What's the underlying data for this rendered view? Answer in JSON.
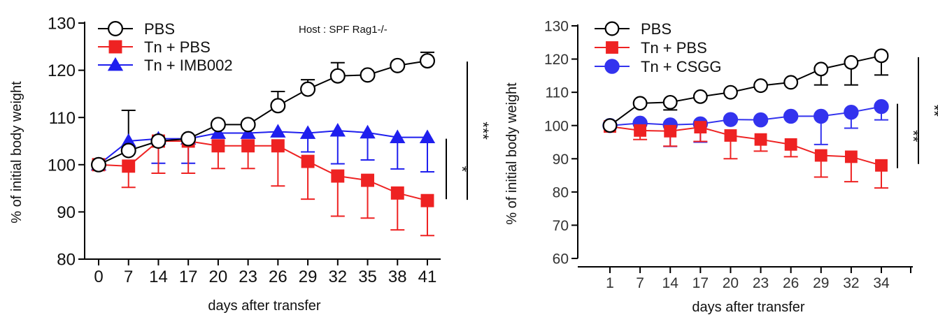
{
  "colors": {
    "pbs": "#000000",
    "tn_pbs": "#ee2222",
    "tn_treat_left": "#1f1fee",
    "tn_treat_right": "#3333ee"
  },
  "chart_data": [
    {
      "type": "line",
      "xlabel": "days after transfer",
      "ylabel": "% of initial body weight",
      "annotation": "Host : SPF Rag1-/-",
      "ylim": [
        80,
        130
      ],
      "yticks": [
        80,
        90,
        100,
        110,
        120,
        130
      ],
      "categories": [
        "0",
        "7",
        "14",
        "17",
        "20",
        "23",
        "26",
        "29",
        "32",
        "35",
        "38",
        "41"
      ],
      "series": [
        {
          "name": "PBS",
          "marker": "open-circle",
          "color": "#000000",
          "values": [
            100,
            103,
            105,
            105.5,
            108.5,
            108.5,
            112.5,
            116,
            118.8,
            119,
            121,
            122
          ],
          "error": [
            0,
            8.5,
            0,
            0,
            0,
            0,
            3,
            2,
            2.8,
            0,
            0,
            1.8
          ]
        },
        {
          "name": "Tn + PBS",
          "marker": "square",
          "color": "#ee2222",
          "values": [
            100,
            99.7,
            105,
            105,
            104,
            104,
            104,
            100.7,
            97.6,
            96.7,
            94,
            92.4
          ],
          "error": [
            0,
            4.5,
            6.8,
            6.8,
            4.8,
            4.8,
            8.5,
            8,
            8.5,
            8,
            7.8,
            7.4
          ]
        },
        {
          "name": "Tn + IMB002",
          "marker": "triangle",
          "color": "#1f1fee",
          "values": [
            100,
            105,
            105.5,
            105.5,
            106.7,
            106.7,
            107,
            106.7,
            107.2,
            106.8,
            105.8,
            105.8
          ],
          "error": [
            0,
            0,
            5.2,
            5.2,
            0,
            0,
            0,
            4,
            7,
            5.8,
            6.7,
            7.3
          ]
        }
      ],
      "significance": [
        {
          "label": "***",
          "from": 122,
          "to": 92.4
        },
        {
          "label": "*",
          "from": 105.8,
          "to": 92.4
        }
      ],
      "legend_position": "top-left",
      "grid": false
    },
    {
      "type": "line",
      "xlabel": "days after transfer",
      "ylabel": "% of initial body weight",
      "ylim": [
        60,
        130
      ],
      "yticks": [
        60,
        70,
        80,
        90,
        100,
        110,
        120,
        130
      ],
      "categories": [
        "1",
        "7",
        "14",
        "17",
        "20",
        "23",
        "26",
        "29",
        "32",
        "34"
      ],
      "series": [
        {
          "name": "PBS",
          "marker": "open-circle",
          "color": "#000000",
          "values": [
            100,
            106.7,
            107,
            108.7,
            110,
            112,
            113,
            117,
            119,
            121
          ],
          "error": [
            0,
            0,
            2.3,
            0,
            0,
            0,
            0,
            4.8,
            6.8,
            5.8
          ]
        },
        {
          "name": "Tn + PBS",
          "marker": "square",
          "color": "#ee2222",
          "values": [
            99.7,
            98.5,
            98.3,
            99.5,
            97,
            95.8,
            94.3,
            91,
            90.6,
            88
          ],
          "error": [
            0,
            2.7,
            4.5,
            4.3,
            7,
            3.5,
            3.7,
            6.5,
            7.5,
            6.8
          ]
        },
        {
          "name": "Tn + CSGG",
          "marker": "circle",
          "color": "#3333ee",
          "values": [
            100,
            100.7,
            100.2,
            100.5,
            101.8,
            101.7,
            102.8,
            102.8,
            104,
            105.7
          ],
          "error": [
            0,
            0,
            6.5,
            5.5,
            0,
            0,
            0,
            8.5,
            4.8,
            4
          ]
        }
      ],
      "significance": [
        {
          "label": "**",
          "from": 121,
          "to": 88
        },
        {
          "label": "**",
          "from": 105.7,
          "to": 88
        }
      ],
      "legend_position": "top-left",
      "grid": false
    }
  ]
}
